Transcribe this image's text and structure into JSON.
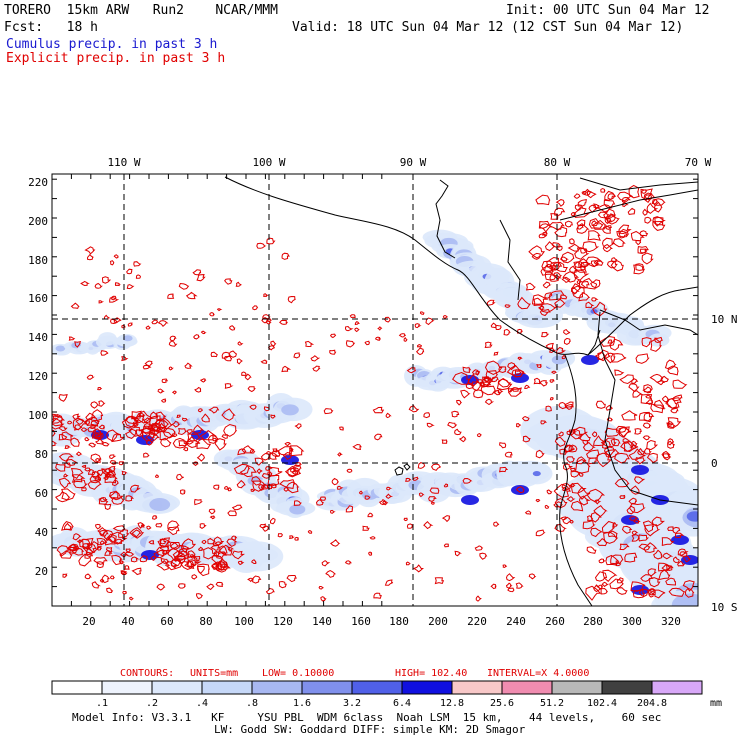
{
  "header": {
    "model": "TORERO  15km ARW   Run2    NCAR/MMM",
    "init": "Init: 00 UTC Sun 04 Mar 12",
    "fcst": "Fcst:   18 h",
    "valid": "Valid: 18 UTC Sun 04 Mar 12 (12 CST Sun 04 Mar 12)",
    "cumulus": "Cumulus precip. in past 3 h",
    "explicit": "Explicit precip. in past 3 h"
  },
  "colors": {
    "cumulus_text": "#1a1ad0",
    "explicit_contour": "#e00000",
    "shade_light": "#dce8fb",
    "shade_mid": "#a8b8f2",
    "shade_dark": "#5060e8",
    "shade_deep": "#1010e0"
  },
  "map": {
    "top_lon_labels": [
      "110 W",
      "100 W",
      "90 W",
      "80 W",
      "70 W"
    ],
    "right_lat_labels": [
      "10 N",
      "0",
      "10 S"
    ],
    "y_ticks": [
      "220",
      "200",
      "180",
      "160",
      "140",
      "120",
      "100",
      "80",
      "60",
      "40",
      "20"
    ],
    "x_ticks": [
      "20",
      "40",
      "60",
      "80",
      "100",
      "120",
      "140",
      "160",
      "180",
      "200",
      "220",
      "240",
      "260",
      "280",
      "300",
      "320"
    ]
  },
  "contours_line": {
    "contours_label": "CONTOURS:",
    "units": "UNITS=mm",
    "low": "LOW= 0.10000",
    "high": "HIGH=  102.40",
    "interval": "INTERVAL=X  4.0000"
  },
  "colorbar": {
    "labels": [
      ".1",
      ".2",
      ".4",
      ".8",
      "1.6",
      "3.2",
      "6.4",
      "12.8",
      "25.6",
      "51.2",
      "102.4",
      "204.8"
    ],
    "unit": "mm",
    "swatches": [
      "#ffffff",
      "#eef3fd",
      "#dce8fb",
      "#c6d8f8",
      "#a8b8f2",
      "#8090ec",
      "#5060e8",
      "#1010e0",
      "#f8c8c8",
      "#f08cb0",
      "#b8b8b8",
      "#404040",
      "#d8a8f8"
    ]
  },
  "footer": {
    "line1": "Model Info: V3.3.1   KF     YSU PBL  WDM 6class  Noah LSM  15 km,    44 levels,    60 sec",
    "line2": "LW: Godd SW: Goddard DIFF: simple KM: 2D Smagor"
  }
}
